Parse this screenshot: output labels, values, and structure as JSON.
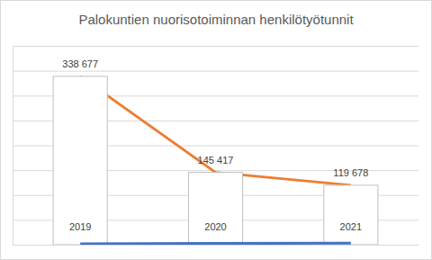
{
  "chart_data": {
    "type": "bar",
    "title": "Palokuntien nuorisotoiminnan henkilötyötunnit",
    "categories": [
      "2019",
      "2020",
      "2021"
    ],
    "series": [
      {
        "type": "line",
        "color": "#ed7d31",
        "values": [
          338677,
          145417,
          119678
        ]
      },
      {
        "type": "bar",
        "color": "#ffffff",
        "values": [
          338677,
          145417,
          119678
        ],
        "value_labels": [
          "338 677",
          "145 417",
          "119 678"
        ],
        "data_labels": true
      },
      {
        "type": "line",
        "color": "#4472c4",
        "values": [
          2000,
          2500,
          3000
        ]
      }
    ],
    "ylim": [
      0,
      400000
    ],
    "yticks": [
      0,
      50000,
      100000,
      150000,
      200000,
      250000,
      300000,
      350000,
      400000
    ],
    "grid": true,
    "tick_labels": "x"
  }
}
